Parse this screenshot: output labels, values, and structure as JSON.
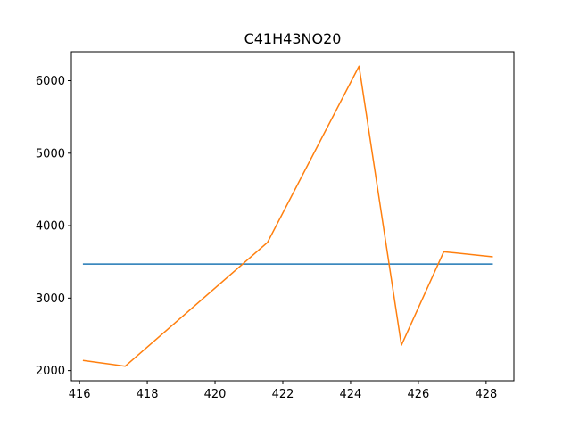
{
  "chart_data": {
    "type": "line",
    "title": "C41H43NO20",
    "xlabel": "",
    "ylabel": "",
    "xlim": [
      415.76,
      428.82
    ],
    "ylim": [
      1860,
      6400
    ],
    "grid": false,
    "x_ticks": [
      416,
      418,
      420,
      422,
      424,
      426,
      428
    ],
    "y_ticks": [
      2000,
      3000,
      4000,
      5000,
      6000
    ],
    "series": [
      {
        "color": "#1f77b4",
        "x": [
          416.1,
          428.2
        ],
        "values": [
          3470,
          3470
        ]
      },
      {
        "color": "#ff7f0e",
        "x": [
          416.1,
          417.35,
          421.55,
          424.25,
          425.5,
          426.75,
          428.2
        ],
        "values": [
          2140,
          2060,
          3770,
          6200,
          2350,
          3640,
          3570
        ]
      }
    ]
  }
}
